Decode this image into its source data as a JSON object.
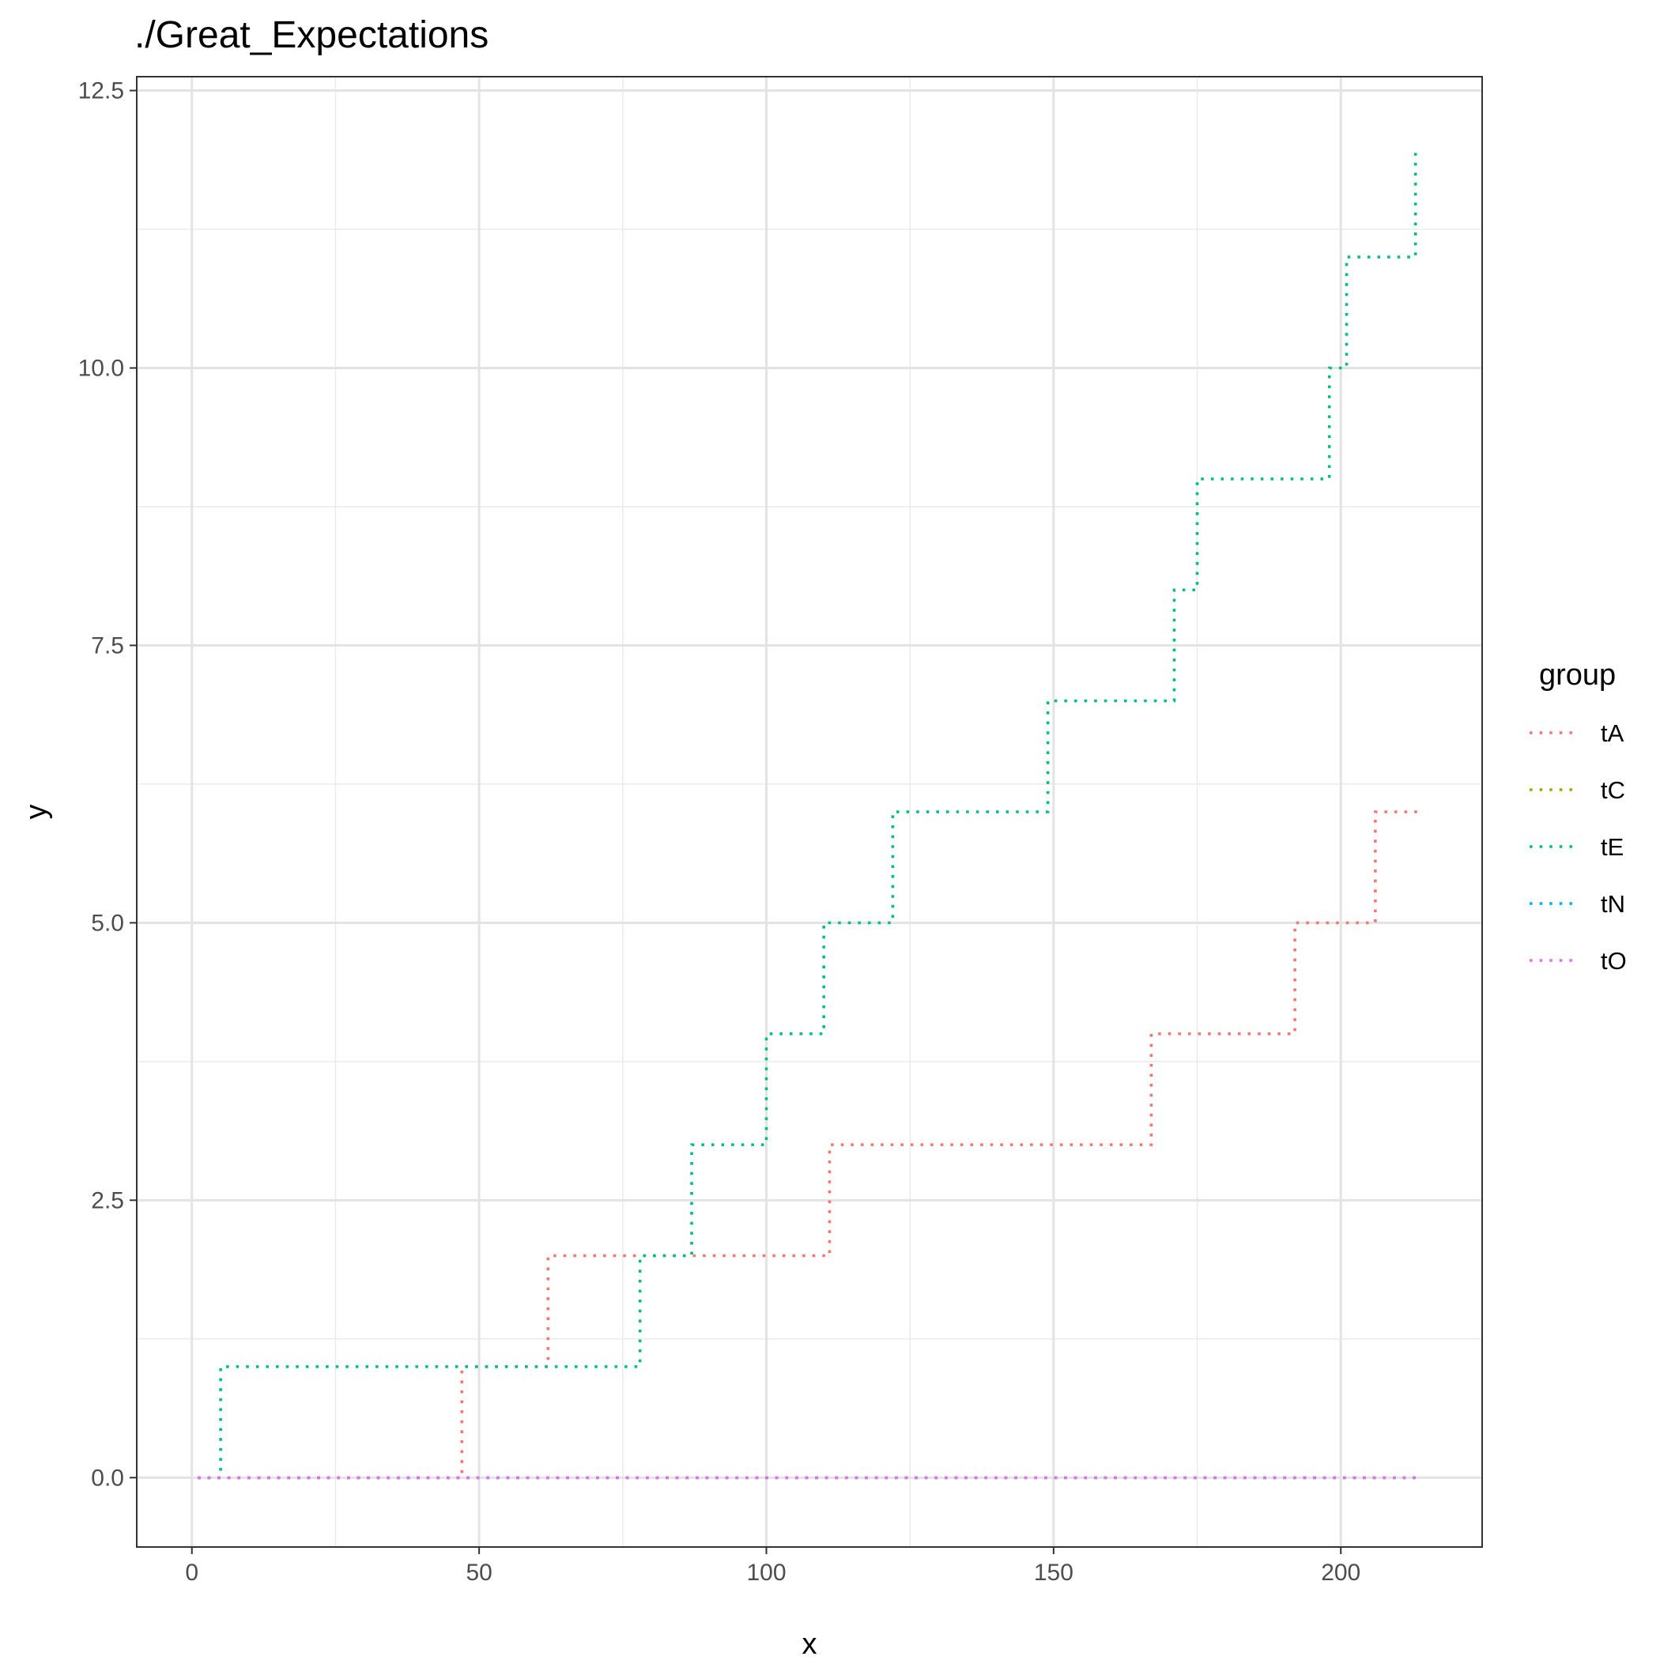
{
  "chart_data": {
    "type": "line",
    "step": true,
    "line_style": "dotted",
    "title": "./Great_Expectations",
    "xlabel": "x",
    "ylabel": "y",
    "xlim": [
      -9.6,
      224.6
    ],
    "ylim": [
      -0.625,
      12.625
    ],
    "x_ticks": [
      0,
      50,
      100,
      150,
      200
    ],
    "x_minor_ticks": [
      25,
      75,
      125,
      175
    ],
    "y_ticks": [
      0,
      2.5,
      5,
      7.5,
      10,
      12.5
    ],
    "y_minor_ticks": [
      1.25,
      3.75,
      6.25,
      8.75,
      11.25
    ],
    "x_tick_labels": [
      "0",
      "50",
      "100",
      "150",
      "200"
    ],
    "y_tick_labels": [
      "0.0",
      "2.5",
      "5.0",
      "7.5",
      "10.0",
      "12.5"
    ],
    "grid": true,
    "legend": {
      "title": "group",
      "placement": "right"
    },
    "series": [
      {
        "name": "tA",
        "color": "#F8766D",
        "steps": [
          [
            1,
            0
          ],
          [
            47,
            1
          ],
          [
            62,
            2
          ],
          [
            111,
            3
          ],
          [
            167,
            4
          ],
          [
            192,
            5
          ],
          [
            206,
            6
          ]
        ],
        "x_end": 214
      },
      {
        "name": "tC",
        "color": "#A3A500",
        "steps": [
          [
            1,
            0
          ]
        ],
        "x_end": 213
      },
      {
        "name": "tE",
        "color": "#00BF7D",
        "steps": [
          [
            1,
            0
          ],
          [
            5,
            1
          ],
          [
            78,
            2
          ],
          [
            87,
            3
          ],
          [
            100,
            4
          ],
          [
            110,
            5
          ],
          [
            122,
            6
          ],
          [
            149,
            7
          ],
          [
            171,
            8
          ],
          [
            175,
            9
          ],
          [
            198,
            10
          ],
          [
            201,
            11
          ],
          [
            213,
            12
          ]
        ],
        "x_end": 213
      },
      {
        "name": "tN",
        "color": "#00B0F6",
        "steps": [
          [
            1,
            0
          ]
        ],
        "x_end": 213
      },
      {
        "name": "tO",
        "color": "#E76BF3",
        "steps": [
          [
            1,
            0
          ]
        ],
        "x_end": 213
      }
    ]
  }
}
